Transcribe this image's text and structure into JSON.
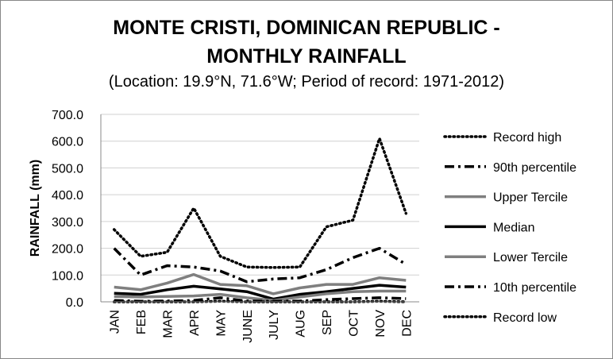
{
  "chart_data": {
    "type": "line",
    "title": "MONTE CRISTI, DOMINICAN REPUBLIC -",
    "title_line2": "MONTHLY RAINFALL",
    "subtitle": "(Location: 19.9°N, 71.6°W; Period of record: 1971-2012)",
    "xlabel": "",
    "ylabel": "RAINFALL (mm)",
    "ylim": [
      0,
      700
    ],
    "yticks": [
      "0.0",
      "100.0",
      "200.0",
      "300.0",
      "400.0",
      "500.0",
      "600.0",
      "700.0"
    ],
    "categories": [
      "JAN",
      "FEB",
      "MAR",
      "APR",
      "MAY",
      "JUNE",
      "JULY",
      "AUG",
      "SEP",
      "OCT",
      "NOV",
      "DEC"
    ],
    "grid": true,
    "legend_position": "right",
    "series": [
      {
        "name": "Record high",
        "color": "#000000",
        "style": "dotted",
        "values": [
          270,
          170,
          185,
          350,
          170,
          130,
          128,
          130,
          280,
          305,
          610,
          330
        ]
      },
      {
        "name": "90th percentile",
        "color": "#000000",
        "style": "dashdot",
        "values": [
          200,
          100,
          135,
          130,
          115,
          75,
          85,
          90,
          120,
          165,
          200,
          140
        ]
      },
      {
        "name": "Upper Tercile",
        "color": "#7f7f7f",
        "style": "solid",
        "values": [
          55,
          45,
          70,
          102,
          65,
          60,
          30,
          52,
          65,
          65,
          90,
          80
        ]
      },
      {
        "name": "Median",
        "color": "#000000",
        "style": "solid",
        "values": [
          32,
          28,
          45,
          58,
          48,
          38,
          10,
          28,
          38,
          50,
          62,
          55
        ]
      },
      {
        "name": "Lower Tercile",
        "color": "#7f7f7f",
        "style": "solid",
        "values": [
          20,
          18,
          20,
          22,
          28,
          15,
          5,
          18,
          30,
          38,
          40,
          40
        ]
      },
      {
        "name": "10th percentile",
        "color": "#000000",
        "style": "dashdot",
        "values": [
          5,
          2,
          3,
          5,
          15,
          3,
          2,
          3,
          8,
          12,
          15,
          12
        ]
      },
      {
        "name": "Record low",
        "color": "#000000",
        "style": "dotted",
        "values": [
          0,
          0,
          0,
          0,
          2,
          0,
          0,
          0,
          0,
          0,
          2,
          0
        ]
      }
    ]
  }
}
